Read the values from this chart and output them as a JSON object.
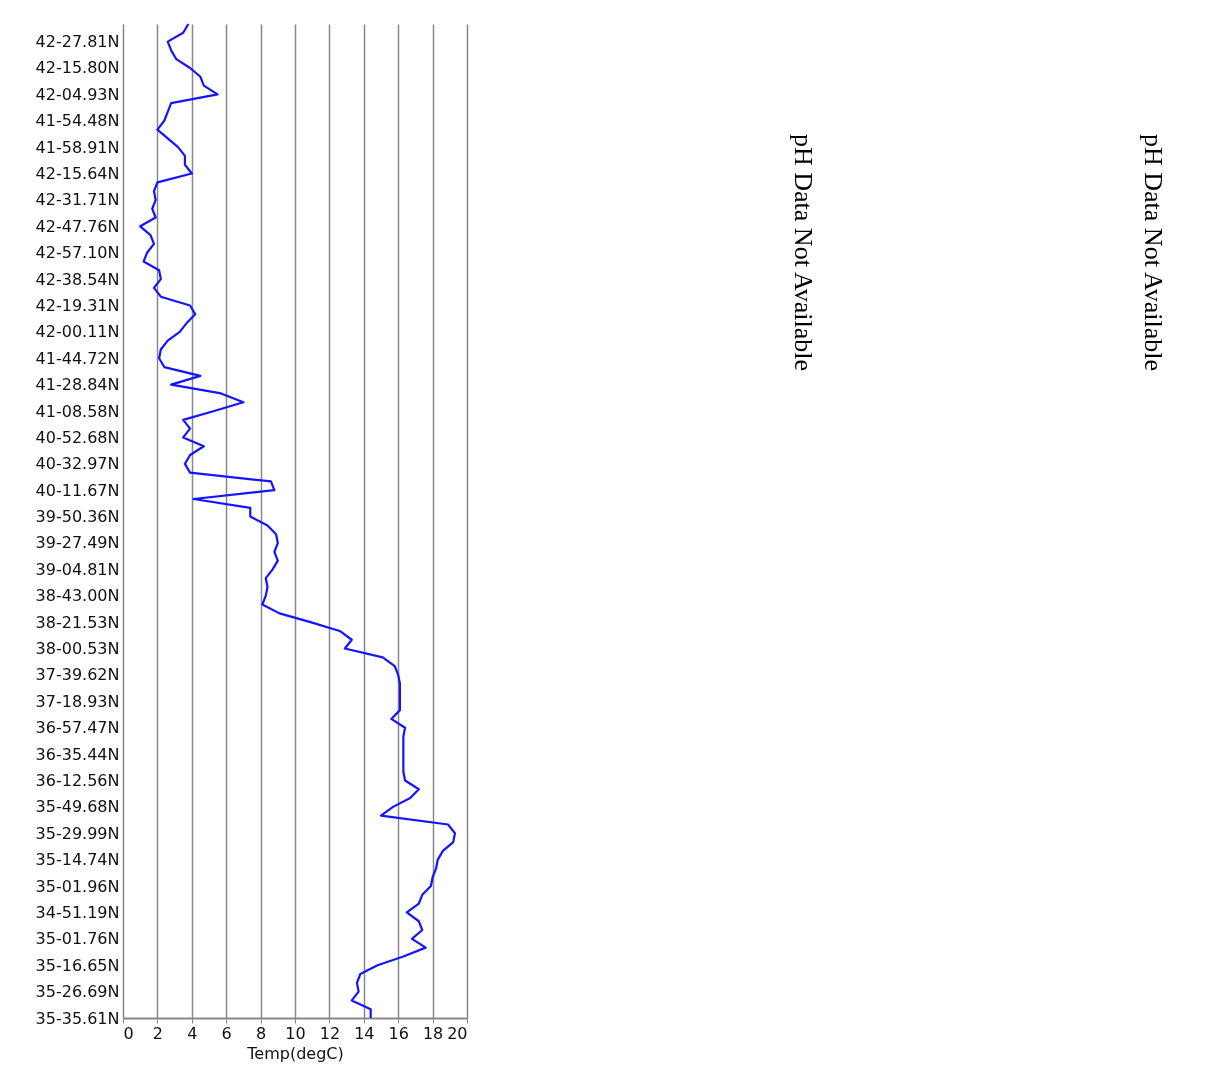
{
  "chart_data": {
    "type": "line",
    "orientation": "horizontal",
    "xlabel": "Temp(degC)",
    "categories": [
      null,
      null,
      "42-27.81N",
      null,
      null,
      "42-15.80N",
      null,
      null,
      "42-04.93N",
      null,
      null,
      "41-54.48N",
      null,
      null,
      "41-58.91N",
      null,
      null,
      "42-15.64N",
      null,
      null,
      "42-31.71N",
      null,
      null,
      "42-47.76N",
      null,
      null,
      "42-57.10N",
      null,
      null,
      "42-38.54N",
      null,
      null,
      "42-19.31N",
      null,
      null,
      "42-00.11N",
      null,
      null,
      "41-44.72N",
      null,
      null,
      "41-28.84N",
      null,
      null,
      "41-08.58N",
      null,
      null,
      "40-52.68N",
      null,
      null,
      "40-32.97N",
      null,
      null,
      "40-11.67N",
      null,
      null,
      "39-50.36N",
      null,
      null,
      "39-27.49N",
      null,
      null,
      "39-04.81N",
      null,
      null,
      "38-43.00N",
      null,
      null,
      "38-21.53N",
      null,
      null,
      "38-00.53N",
      null,
      null,
      "37-39.62N",
      null,
      null,
      "37-18.93N",
      null,
      null,
      "36-57.47N",
      null,
      null,
      "36-35.44N",
      null,
      null,
      "36-12.56N",
      null,
      null,
      "35-49.68N",
      null,
      null,
      "35-29.99N",
      null,
      null,
      "35-14.74N",
      null,
      null,
      "35-01.96N",
      null,
      null,
      "34-51.19N",
      null,
      null,
      "35-01.76N",
      null,
      null,
      "35-16.65N",
      null,
      null,
      "35-26.69N",
      null,
      null,
      "35-35.61N"
    ],
    "series": [
      {
        "color": "#1414ff",
        "values": [
          3.8,
          3.5,
          2.6,
          2.8,
          3.1,
          3.9,
          4.5,
          4.7,
          5.5,
          2.8,
          2.6,
          2.4,
          2.0,
          2.6,
          3.2,
          3.6,
          3.6,
          4.0,
          2.0,
          1.8,
          1.9,
          1.7,
          1.9,
          1.0,
          1.6,
          1.8,
          1.4,
          1.2,
          2.1,
          2.2,
          1.8,
          2.2,
          3.9,
          4.2,
          3.7,
          3.3,
          2.6,
          2.2,
          2.1,
          2.4,
          4.5,
          2.8,
          5.7,
          7.0,
          5.3,
          3.5,
          3.9,
          3.5,
          4.7,
          3.9,
          3.6,
          3.9,
          8.6,
          8.8,
          4.1,
          7.4,
          7.4,
          8.4,
          8.9,
          9.0,
          8.8,
          9.0,
          8.7,
          8.3,
          8.4,
          8.3,
          8.1,
          9.1,
          10.9,
          12.6,
          13.3,
          12.9,
          15.1,
          15.8,
          16.0,
          16.1,
          16.1,
          16.1,
          16.1,
          15.6,
          16.4,
          16.3,
          16.3,
          16.3,
          16.3,
          16.3,
          16.4,
          17.2,
          16.7,
          15.7,
          15.0,
          18.9,
          19.3,
          19.2,
          18.6,
          18.3,
          18.2,
          18.0,
          17.9,
          17.4,
          17.2,
          16.5,
          17.2,
          17.4,
          16.8,
          17.6,
          16.3,
          14.8,
          13.8,
          13.6,
          13.7,
          13.3,
          14.4,
          14.4
        ]
      }
    ],
    "xlim": [
      0,
      20
    ],
    "xticks": [
      0,
      2,
      4,
      6,
      8,
      10,
      12,
      14,
      16,
      18,
      20
    ],
    "grid": "x",
    "marker": "none",
    "line_style": "solid",
    "annotations": [
      "pH Data Not Available",
      "pH Data Not Available"
    ]
  }
}
